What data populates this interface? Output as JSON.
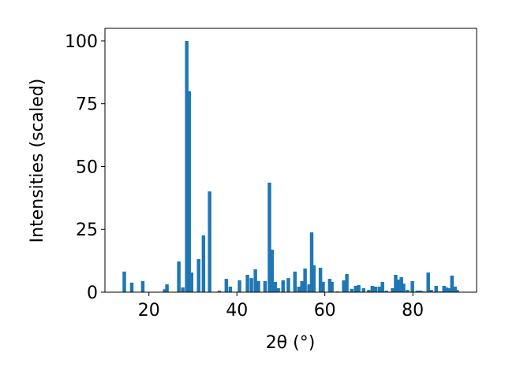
{
  "chart_data": {
    "type": "bar",
    "xlabel": "2θ (°)",
    "ylabel": "Intensities (scaled)",
    "color": "#1f77b4",
    "x": [
      14.4,
      16.1,
      18.6,
      23.6,
      24.1,
      26.8,
      27.7,
      28.6,
      29.15,
      29.7,
      31.3,
      32.4,
      33.8,
      36.0,
      37.6,
      38.5,
      40.6,
      42.4,
      43.3,
      44.2,
      44.9,
      46.4,
      47.4,
      48.0,
      48.7,
      49.4,
      50.5,
      51.7,
      53.2,
      54.1,
      54.8,
      55.5,
      56.4,
      57.0,
      57.5,
      59.0,
      59.6,
      61.1,
      61.6,
      62.9,
      64.3,
      65.0,
      66.1,
      67.0,
      67.7,
      68.8,
      70.0,
      70.8,
      71.5,
      72.4,
      73.1,
      74.0,
      75.4,
      76.1,
      76.7,
      77.4,
      77.9,
      78.8,
      79.9,
      81.0,
      81.7,
      82.4,
      83.5,
      84.2,
      85.3,
      86.2,
      87.1,
      87.6,
      88.3,
      88.9,
      89.6,
      90.1
    ],
    "values": [
      8.2,
      3.8,
      4.4,
      1.2,
      3.1,
      12.2,
      1.9,
      100,
      80,
      7.8,
      13.2,
      22.6,
      40.1,
      0.6,
      5.3,
      2.2,
      4.7,
      6.9,
      5.6,
      9.1,
      4.4,
      4.4,
      43.6,
      16.9,
      4.1,
      1.6,
      4.7,
      5.6,
      8.2,
      2.2,
      4.4,
      9.4,
      3.1,
      23.8,
      10.7,
      9.7,
      4.1,
      5.3,
      4.1,
      0.3,
      4.7,
      7.2,
      1.3,
      2.5,
      2.8,
      1.6,
      0.9,
      2.5,
      2.2,
      2.2,
      4.1,
      0.6,
      1.6,
      6.9,
      5.0,
      6.0,
      3.4,
      0.9,
      4.4,
      0.6,
      0.6,
      0.3,
      7.8,
      0.9,
      2.5,
      0.3,
      2.5,
      1.9,
      1.6,
      6.6,
      2.2,
      0.9
    ],
    "xlim": [
      10,
      94.5
    ],
    "ylim": [
      0,
      105
    ],
    "xticks": [
      20,
      40,
      60,
      80
    ],
    "yticks": [
      0,
      25,
      50,
      75,
      100
    ]
  }
}
